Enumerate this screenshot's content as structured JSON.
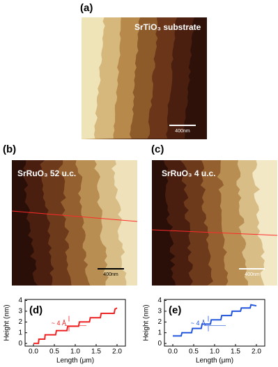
{
  "panels": [
    {
      "label": "(a)",
      "caption": "SrTiO₃ substrate",
      "scale_bar": "400nm"
    },
    {
      "label": "(b)",
      "caption": "SrRuO₃ 52 u.c.",
      "scale_bar": "400nm"
    },
    {
      "label": "(c)",
      "caption": "SrRuO₃ 4 u.c.",
      "scale_bar": "400nm"
    }
  ],
  "chart_data": [
    {
      "type": "line",
      "panel_label": "(d)",
      "annotation": "~ 4 Å",
      "color": "#ee2222",
      "x_label": "Length (μm)",
      "y_label": "Height (nm)",
      "xlim": [
        -0.2,
        2.2
      ],
      "ylim": [
        -0.25,
        4.1
      ],
      "xticks": [
        {
          "value": 0,
          "label": "0.0"
        },
        {
          "value": 0.5,
          "label": "0.5"
        },
        {
          "value": 1,
          "label": "1.0"
        },
        {
          "value": 1.5,
          "label": "1.5"
        },
        {
          "value": 2,
          "label": "2.0"
        }
      ],
      "yticks": [
        0,
        1,
        2,
        3,
        4
      ],
      "x": [
        0,
        0.12,
        0.13,
        0.27,
        0.28,
        0.53,
        0.55,
        0.8,
        0.82,
        1.08,
        1.1,
        1.34,
        1.36,
        1.6,
        1.62,
        1.93,
        1.95,
        2.0
      ],
      "values": [
        0,
        0,
        0.4,
        0.4,
        0.8,
        0.8,
        1.2,
        1.2,
        1.6,
        1.6,
        2.0,
        2.0,
        2.4,
        2.4,
        2.8,
        2.8,
        3.2,
        3.3
      ]
    },
    {
      "type": "line",
      "panel_label": "(e)",
      "annotation": "~ 4 Å",
      "color": "#2255dd",
      "x_label": "Length (μm)",
      "y_label": "Height (nm)",
      "xlim": [
        -0.2,
        2.2
      ],
      "ylim": [
        -0.25,
        4.1
      ],
      "xticks": [
        {
          "value": 0,
          "label": "0.0"
        },
        {
          "value": 0.5,
          "label": "0.5"
        },
        {
          "value": 1,
          "label": "1.0"
        },
        {
          "value": 1.5,
          "label": "1.5"
        },
        {
          "value": 2,
          "label": "2.0"
        }
      ],
      "yticks": [
        0,
        1,
        2,
        3,
        4
      ],
      "x": [
        0,
        0.2,
        0.22,
        0.45,
        0.47,
        0.68,
        0.7,
        0.9,
        0.92,
        1.15,
        1.17,
        1.4,
        1.42,
        1.62,
        1.64,
        1.85,
        1.87,
        2.0
      ],
      "values": [
        0.7,
        0.7,
        1.0,
        1.0,
        1.4,
        1.4,
        1.8,
        1.8,
        2.2,
        2.2,
        2.6,
        2.6,
        3.0,
        3.0,
        3.3,
        3.3,
        3.6,
        3.5
      ]
    }
  ]
}
